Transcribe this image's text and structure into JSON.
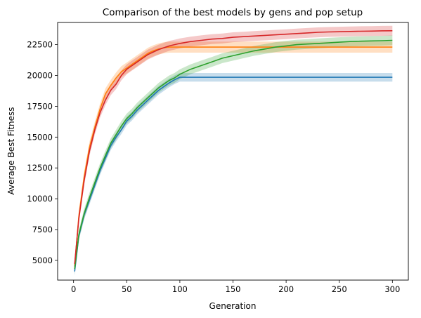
{
  "chart_data": {
    "type": "line",
    "title": "Comparison of the best models by gens and pop setup",
    "xlabel": "Generation",
    "ylabel": "Average Best Fitness",
    "xlim": [
      -15,
      315
    ],
    "ylim": [
      3400,
      24300
    ],
    "xticks": [
      0,
      50,
      100,
      150,
      200,
      250,
      300
    ],
    "yticks": [
      5000,
      7500,
      10000,
      12500,
      15000,
      17500,
      20000,
      22500
    ],
    "grid": false,
    "legend": "none",
    "series": [
      {
        "color": "#1f77b4",
        "band_width": 350,
        "x": [
          1,
          5,
          10,
          15,
          20,
          25,
          30,
          35,
          40,
          45,
          50,
          55,
          60,
          65,
          70,
          75,
          80,
          85,
          90,
          95,
          100,
          110,
          150,
          200,
          250,
          300
        ],
        "y": [
          4100,
          7000,
          8700,
          9900,
          11100,
          12300,
          13300,
          14300,
          15000,
          15600,
          16300,
          16700,
          17200,
          17600,
          18000,
          18400,
          18800,
          19100,
          19400,
          19650,
          19850,
          19850,
          19850,
          19850,
          19850,
          19850
        ]
      },
      {
        "color": "#ff7f0e",
        "band_width": 450,
        "x": [
          1,
          5,
          10,
          15,
          20,
          25,
          30,
          35,
          40,
          45,
          50,
          55,
          60,
          65,
          70,
          75,
          80,
          85,
          90,
          95,
          100,
          110,
          150,
          200,
          250,
          300
        ],
        "y": [
          4500,
          8600,
          11800,
          14200,
          15800,
          17300,
          18500,
          19200,
          19800,
          20300,
          20600,
          20900,
          21200,
          21500,
          21800,
          22000,
          22150,
          22250,
          22300,
          22300,
          22300,
          22300,
          22300,
          22300,
          22300,
          22300
        ]
      },
      {
        "color": "#2ca02c",
        "band_width": 400,
        "x": [
          1,
          5,
          10,
          15,
          20,
          25,
          30,
          35,
          40,
          45,
          50,
          55,
          60,
          65,
          70,
          75,
          80,
          85,
          90,
          95,
          100,
          110,
          120,
          130,
          140,
          150,
          160,
          170,
          180,
          190,
          200,
          210,
          220,
          230,
          240,
          250,
          260,
          270,
          280,
          290,
          300
        ],
        "y": [
          4300,
          7100,
          8800,
          10100,
          11300,
          12500,
          13500,
          14500,
          15200,
          15900,
          16500,
          16900,
          17400,
          17800,
          18200,
          18600,
          19000,
          19300,
          19600,
          19800,
          20100,
          20500,
          20800,
          21100,
          21400,
          21600,
          21800,
          22000,
          22150,
          22300,
          22400,
          22500,
          22550,
          22600,
          22650,
          22700,
          22750,
          22780,
          22800,
          22820,
          22850
        ]
      },
      {
        "color": "#d62728",
        "band_width": 400,
        "x": [
          1,
          5,
          10,
          15,
          20,
          25,
          30,
          35,
          40,
          45,
          50,
          55,
          60,
          65,
          70,
          75,
          80,
          85,
          90,
          95,
          100,
          110,
          120,
          130,
          140,
          150,
          160,
          170,
          180,
          190,
          200,
          210,
          220,
          230,
          240,
          250,
          260,
          270,
          280,
          290,
          300
        ],
        "y": [
          4700,
          8400,
          11500,
          13900,
          15600,
          17000,
          18000,
          18800,
          19300,
          20000,
          20500,
          20800,
          21100,
          21400,
          21700,
          21900,
          22100,
          22250,
          22400,
          22500,
          22600,
          22750,
          22850,
          22950,
          23000,
          23100,
          23150,
          23200,
          23250,
          23300,
          23350,
          23400,
          23450,
          23500,
          23530,
          23550,
          23570,
          23590,
          23600,
          23620,
          23630
        ]
      }
    ]
  }
}
